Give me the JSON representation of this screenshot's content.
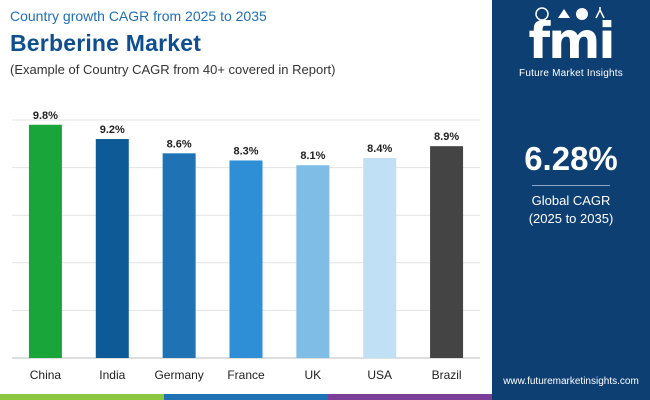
{
  "header": {
    "subtitle": "Country growth CAGR from 2025 to 2035",
    "title": "Berberine Market",
    "note": "(Example of Country CAGR from 40+ covered in Report)"
  },
  "chart_data": {
    "type": "bar",
    "title": "Berberine Market",
    "subtitle": "Country growth CAGR from 2025 to 2035",
    "categories": [
      "China",
      "India",
      "Germany",
      "France",
      "UK",
      "USA",
      "Brazil"
    ],
    "values": [
      9.8,
      9.2,
      8.6,
      8.3,
      8.1,
      8.4,
      8.9
    ],
    "value_labels": [
      "9.8%",
      "9.2%",
      "8.6%",
      "8.3%",
      "8.1%",
      "8.4%",
      "8.9%"
    ],
    "colors": [
      "#1aa53a",
      "#0e5a96",
      "#1f73b4",
      "#2f8fd6",
      "#7fbde6",
      "#bfe0f5",
      "#444444"
    ],
    "xlabel": "",
    "ylabel": "",
    "ylim": [
      0,
      10
    ],
    "grid": true
  },
  "panel": {
    "logo_text": "fmi",
    "logo_caption": "Future Market Insights",
    "cagr_value": "6.28%",
    "cagr_label_line1": "Global CAGR",
    "cagr_label_line2": "(2025 to 2035)",
    "website": "www.futuremarketinsights.com"
  },
  "stripe_colors": [
    "#8dc63f",
    "#1f73b4",
    "#7b3f98"
  ]
}
